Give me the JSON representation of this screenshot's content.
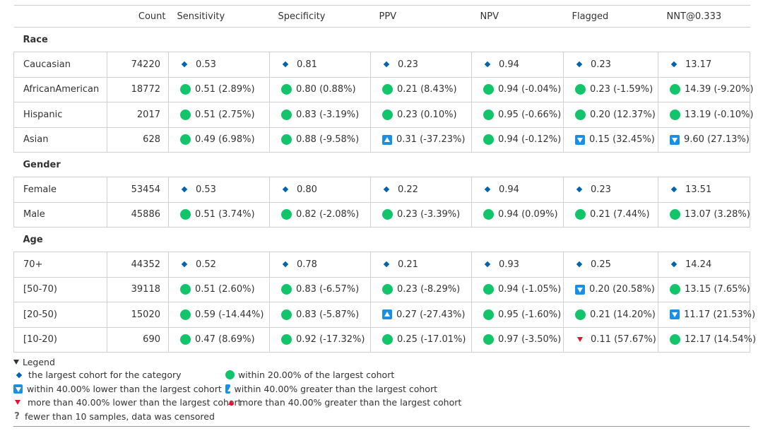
{
  "columns": [
    "",
    "Count",
    "Sensitivity",
    "Specificity",
    "PPV",
    "NPV",
    "Flagged",
    "NNT@0.333"
  ],
  "colors": {
    "diamond": "#0063b1",
    "circle": "#13c56a",
    "square": "#1a8fe3",
    "red": "#e8112d"
  },
  "groups": [
    {
      "category": "Race",
      "rows": [
        {
          "name": "Caucasian",
          "count": "74220",
          "cells": [
            {
              "marker": "diamond",
              "text": "0.53"
            },
            {
              "marker": "diamond",
              "text": "0.81"
            },
            {
              "marker": "diamond",
              "text": "0.23"
            },
            {
              "marker": "diamond",
              "text": "0.94"
            },
            {
              "marker": "diamond",
              "text": "0.23"
            },
            {
              "marker": "diamond",
              "text": "13.17"
            }
          ]
        },
        {
          "name": "AfricanAmerican",
          "count": "18772",
          "cells": [
            {
              "marker": "circle",
              "text": "0.51 (2.89%)"
            },
            {
              "marker": "circle",
              "text": "0.80 (0.88%)"
            },
            {
              "marker": "circle",
              "text": "0.21 (8.43%)"
            },
            {
              "marker": "circle",
              "text": "0.94 (-0.04%)"
            },
            {
              "marker": "circle",
              "text": "0.23 (-1.59%)"
            },
            {
              "marker": "circle",
              "text": "14.39 (-9.20%)"
            }
          ]
        },
        {
          "name": "Hispanic",
          "count": "2017",
          "cells": [
            {
              "marker": "circle",
              "text": "0.51 (2.75%)"
            },
            {
              "marker": "circle",
              "text": "0.83 (-3.19%)"
            },
            {
              "marker": "circle",
              "text": "0.23 (0.10%)"
            },
            {
              "marker": "circle",
              "text": "0.95 (-0.66%)"
            },
            {
              "marker": "circle",
              "text": "0.20 (12.37%)"
            },
            {
              "marker": "circle",
              "text": "13.19 (-0.10%)"
            }
          ]
        },
        {
          "name": "Asian",
          "count": "628",
          "cells": [
            {
              "marker": "circle",
              "text": "0.49 (6.98%)"
            },
            {
              "marker": "circle",
              "text": "0.88 (-9.58%)"
            },
            {
              "marker": "sq-up",
              "text": "0.31 (-37.23%)"
            },
            {
              "marker": "circle",
              "text": "0.94 (-0.12%)"
            },
            {
              "marker": "sq-down",
              "text": "0.15 (32.45%)"
            },
            {
              "marker": "sq-down",
              "text": "9.60 (27.13%)"
            }
          ]
        }
      ]
    },
    {
      "category": "Gender",
      "rows": [
        {
          "name": "Female",
          "count": "53454",
          "cells": [
            {
              "marker": "diamond",
              "text": "0.53"
            },
            {
              "marker": "diamond",
              "text": "0.80"
            },
            {
              "marker": "diamond",
              "text": "0.22"
            },
            {
              "marker": "diamond",
              "text": "0.94"
            },
            {
              "marker": "diamond",
              "text": "0.23"
            },
            {
              "marker": "diamond",
              "text": "13.51"
            }
          ]
        },
        {
          "name": "Male",
          "count": "45886",
          "cells": [
            {
              "marker": "circle",
              "text": "0.51 (3.74%)"
            },
            {
              "marker": "circle",
              "text": "0.82 (-2.08%)"
            },
            {
              "marker": "circle",
              "text": "0.23 (-3.39%)"
            },
            {
              "marker": "circle",
              "text": "0.94 (0.09%)"
            },
            {
              "marker": "circle",
              "text": "0.21 (7.44%)"
            },
            {
              "marker": "circle",
              "text": "13.07 (3.28%)"
            }
          ]
        }
      ]
    },
    {
      "category": "Age",
      "rows": [
        {
          "name": "70+",
          "count": "44352",
          "cells": [
            {
              "marker": "diamond",
              "text": "0.52"
            },
            {
              "marker": "diamond",
              "text": "0.78"
            },
            {
              "marker": "diamond",
              "text": "0.21"
            },
            {
              "marker": "diamond",
              "text": "0.93"
            },
            {
              "marker": "diamond",
              "text": "0.25"
            },
            {
              "marker": "diamond",
              "text": "14.24"
            }
          ]
        },
        {
          "name": "[50-70)",
          "count": "39118",
          "cells": [
            {
              "marker": "circle",
              "text": "0.51 (2.60%)"
            },
            {
              "marker": "circle",
              "text": "0.83 (-6.57%)"
            },
            {
              "marker": "circle",
              "text": "0.23 (-8.29%)"
            },
            {
              "marker": "circle",
              "text": "0.94 (-1.05%)"
            },
            {
              "marker": "sq-down",
              "text": "0.20 (20.58%)"
            },
            {
              "marker": "circle",
              "text": "13.15 (7.65%)"
            }
          ]
        },
        {
          "name": "[20-50)",
          "count": "15020",
          "cells": [
            {
              "marker": "circle",
              "text": "0.59 (-14.44%)"
            },
            {
              "marker": "circle",
              "text": "0.83 (-5.87%)"
            },
            {
              "marker": "sq-up",
              "text": "0.27 (-27.43%)"
            },
            {
              "marker": "circle",
              "text": "0.95 (-1.60%)"
            },
            {
              "marker": "circle",
              "text": "0.21 (14.20%)"
            },
            {
              "marker": "sq-down",
              "text": "11.17 (21.53%)"
            }
          ]
        },
        {
          "name": "[10-20)",
          "count": "690",
          "cells": [
            {
              "marker": "circle",
              "text": "0.47 (8.69%)"
            },
            {
              "marker": "circle",
              "text": "0.92 (-17.32%)"
            },
            {
              "marker": "circle",
              "text": "0.25 (-17.01%)"
            },
            {
              "marker": "circle",
              "text": "0.97 (-3.50%)"
            },
            {
              "marker": "tri-down",
              "text": "0.11 (57.67%)"
            },
            {
              "marker": "circle",
              "text": "12.17 (14.54%)"
            }
          ]
        }
      ]
    }
  ],
  "legend": {
    "title": "Legend",
    "items": [
      {
        "marker": "diamond",
        "text": "the largest cohort for the category"
      },
      {
        "marker": "circle",
        "text": "within 20.00% of the largest cohort"
      },
      {
        "marker": "sq-down",
        "text": "within 40.00% lower than the largest cohort"
      },
      {
        "marker": "sq-up",
        "text": "within 40.00% greater than the largest cohort"
      },
      {
        "marker": "tri-down",
        "text": "more than 40.00% lower than the largest cohort"
      },
      {
        "marker": "tri-up",
        "text": "more than 40.00% greater than the largest cohort"
      },
      {
        "marker": "question",
        "text": "fewer than 10 samples, data was censored"
      }
    ]
  }
}
